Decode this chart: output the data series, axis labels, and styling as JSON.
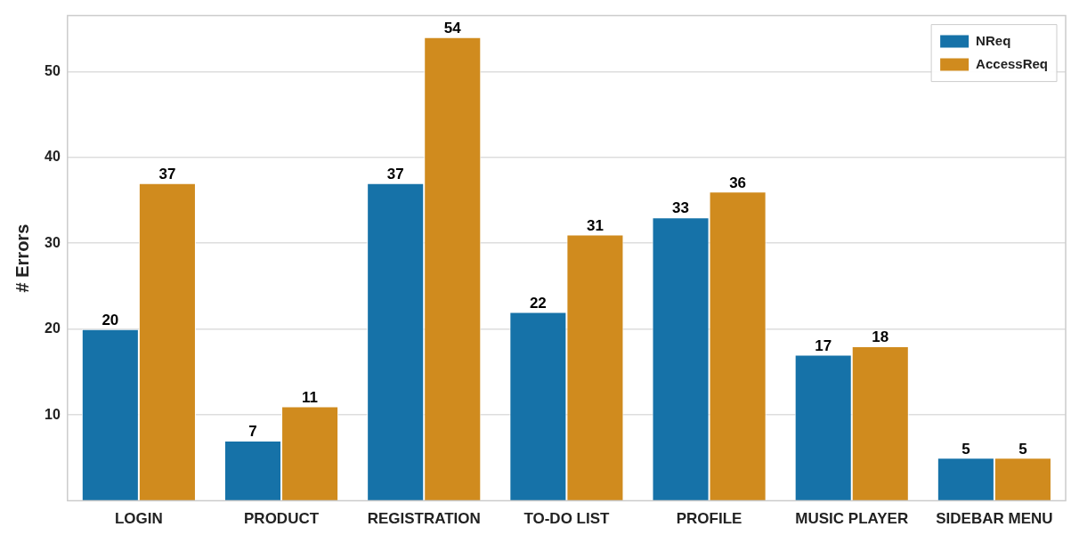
{
  "chart_data": {
    "type": "bar",
    "ylabel": "# Errors",
    "categories": [
      "LOGIN",
      "PRODUCT",
      "REGISTRATION",
      "TO-DO LIST",
      "PROFILE",
      "MUSIC PLAYER",
      "SIDEBAR MENU"
    ],
    "series": [
      {
        "name": "NReq",
        "color": "#1672a8",
        "values": [
          20,
          7,
          37,
          22,
          33,
          17,
          5
        ]
      },
      {
        "name": "AccessReq",
        "color": "#d08b1e",
        "values": [
          37,
          11,
          54,
          31,
          36,
          18,
          5
        ]
      }
    ],
    "ylim": [
      0,
      56.5
    ],
    "yticks": [
      10,
      20,
      30,
      40,
      50
    ],
    "grid": "y",
    "legend": "top right",
    "data_labels": true
  }
}
